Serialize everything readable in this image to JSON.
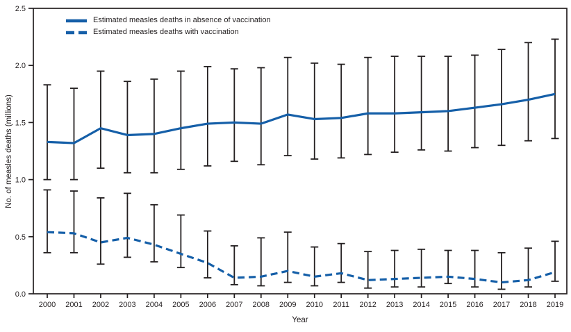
{
  "colors": {
    "accent": "#155fa8",
    "ink": "#231f20",
    "background": "#ffffff"
  },
  "chart_data": {
    "type": "line",
    "xlabel": "Year",
    "ylabel": "No. of measles deaths (millions)",
    "x": [
      2000,
      2001,
      2002,
      2003,
      2004,
      2005,
      2006,
      2007,
      2008,
      2009,
      2010,
      2011,
      2012,
      2013,
      2014,
      2015,
      2016,
      2017,
      2018,
      2019
    ],
    "ylim": [
      0,
      2.5
    ],
    "y_ticks": [
      0.0,
      0.5,
      1.0,
      1.5,
      2.0,
      2.5
    ],
    "y_tick_labels": [
      "0.0",
      "0.5",
      "1.0",
      "1.5",
      "2.0",
      "2.5"
    ],
    "grid": false,
    "legend_position": "upper-left-inside",
    "error_bars": true,
    "series": [
      {
        "name": "Estimated measles deaths in absence of vaccination",
        "line_style": "solid",
        "values": [
          1.33,
          1.32,
          1.45,
          1.39,
          1.4,
          1.45,
          1.49,
          1.5,
          1.49,
          1.57,
          1.53,
          1.54,
          1.58,
          1.58,
          1.59,
          1.6,
          1.63,
          1.66,
          1.7,
          1.75
        ],
        "ci_lower": [
          1.0,
          1.0,
          1.1,
          1.06,
          1.06,
          1.09,
          1.12,
          1.16,
          1.13,
          1.21,
          1.18,
          1.19,
          1.22,
          1.24,
          1.26,
          1.25,
          1.28,
          1.3,
          1.34,
          1.36
        ],
        "ci_upper": [
          1.83,
          1.8,
          1.95,
          1.86,
          1.88,
          1.95,
          1.99,
          1.97,
          1.98,
          2.07,
          2.02,
          2.01,
          2.07,
          2.08,
          2.08,
          2.08,
          2.09,
          2.14,
          2.2,
          2.23
        ]
      },
      {
        "name": "Estimated measles deaths with vaccination",
        "line_style": "dashed",
        "values": [
          0.54,
          0.53,
          0.45,
          0.49,
          0.43,
          0.35,
          0.27,
          0.14,
          0.15,
          0.2,
          0.15,
          0.18,
          0.12,
          0.13,
          0.14,
          0.15,
          0.13,
          0.1,
          0.12,
          0.19
        ],
        "ci_lower": [
          0.36,
          0.36,
          0.26,
          0.32,
          0.28,
          0.23,
          0.14,
          0.08,
          0.07,
          0.1,
          0.07,
          0.1,
          0.05,
          0.06,
          0.06,
          0.09,
          0.06,
          0.04,
          0.06,
          0.11
        ],
        "ci_upper": [
          0.91,
          0.9,
          0.84,
          0.88,
          0.78,
          0.69,
          0.55,
          0.42,
          0.49,
          0.54,
          0.41,
          0.44,
          0.37,
          0.38,
          0.39,
          0.38,
          0.38,
          0.36,
          0.4,
          0.46
        ]
      }
    ]
  }
}
